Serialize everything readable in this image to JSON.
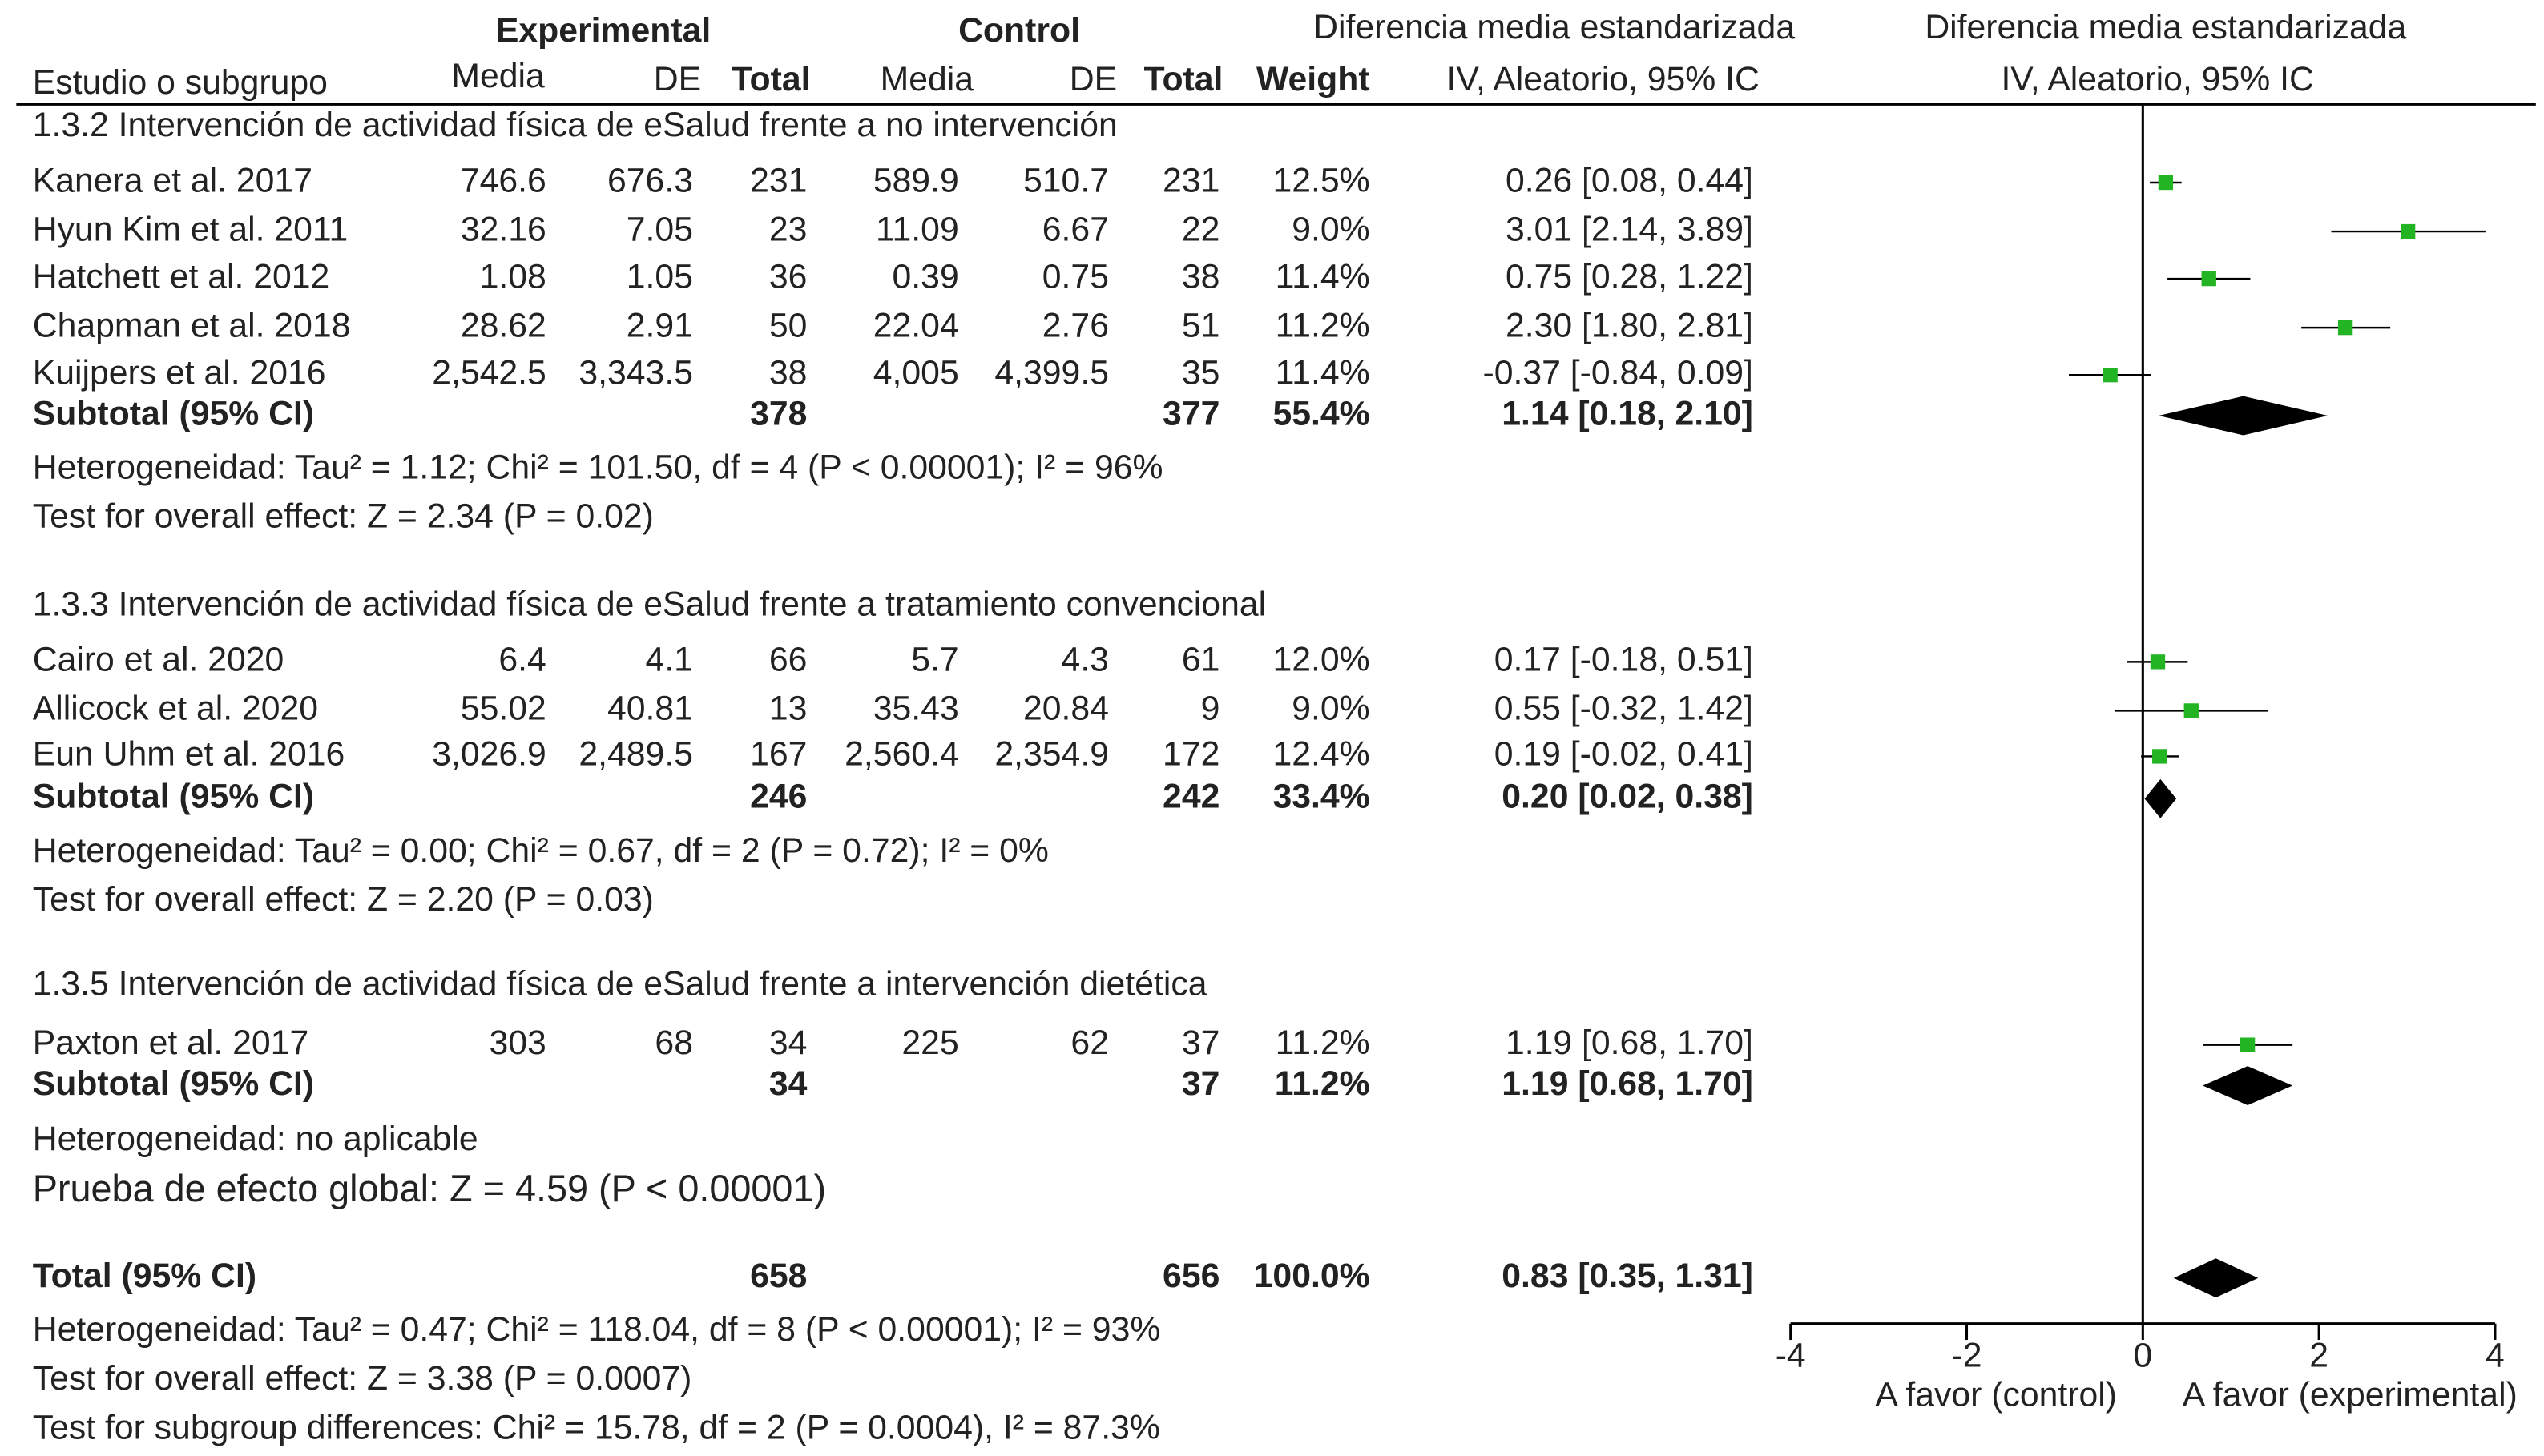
{
  "chart_data": {
    "type": "forest",
    "header": {
      "experimental": "Experimental",
      "control": "Control",
      "study": "Estudio o subgrupo",
      "mean_exp": "Media",
      "sd_exp": "DE",
      "total_exp": "Total",
      "mean_ctrl": "Media",
      "sd_ctrl": "DE",
      "total_ctrl": "Total",
      "weight": "Weight",
      "smd": "Diferencia media estandarizada",
      "method": "IV, Aleatorio, 95% IC",
      "plot_smd": "Diferencia media estandarizada",
      "plot_method": "IV, Aleatorio, 95% IC"
    },
    "subgroups": [
      {
        "title": "1.3.2 Intervención de actividad física de eSalud frente a no intervención",
        "studies": [
          {
            "study": "Kanera et al. 2017",
            "exp": [
              "746.6",
              "676.3",
              "231"
            ],
            "ctrl": [
              "589.9",
              "510.7",
              "231"
            ],
            "weight": "12.5%",
            "ci_label": "0.26 [0.08, 0.44]",
            "est": 0.26,
            "lo": 0.08,
            "hi": 0.44
          },
          {
            "study": "Hyun Kim et al. 2011",
            "exp": [
              "32.16",
              "7.05",
              "23"
            ],
            "ctrl": [
              "11.09",
              "6.67",
              "22"
            ],
            "weight": "9.0%",
            "ci_label": "3.01 [2.14, 3.89]",
            "est": 3.01,
            "lo": 2.14,
            "hi": 3.89
          },
          {
            "study": "Hatchett et al. 2012",
            "exp": [
              "1.08",
              "1.05",
              "36"
            ],
            "ctrl": [
              "0.39",
              "0.75",
              "38"
            ],
            "weight": "11.4%",
            "ci_label": "0.75 [0.28, 1.22]",
            "est": 0.75,
            "lo": 0.28,
            "hi": 1.22
          },
          {
            "study": "Chapman et al. 2018",
            "exp": [
              "28.62",
              "2.91",
              "50"
            ],
            "ctrl": [
              "22.04",
              "2.76",
              "51"
            ],
            "weight": "11.2%",
            "ci_label": "2.30 [1.80, 2.81]",
            "est": 2.3,
            "lo": 1.8,
            "hi": 2.81
          },
          {
            "study": "Kuijpers et al. 2016",
            "exp": [
              "2,542.5",
              "3,343.5",
              "38"
            ],
            "ctrl": [
              "4,005",
              "4,399.5",
              "35"
            ],
            "weight": "11.4%",
            "ci_label": "-0.37 [-0.84, 0.09]",
            "est": -0.37,
            "lo": -0.84,
            "hi": 0.09
          }
        ],
        "subtotal": {
          "label": "Subtotal (95% CI)",
          "exp_total": "378",
          "ctrl_total": "377",
          "weight": "55.4%",
          "ci_label": "1.14 [0.18, 2.10]",
          "est": 1.14,
          "lo": 0.18,
          "hi": 2.1
        },
        "heterogeneity": "Heterogeneidad: Tau² = 1.12; Chi² = 101.50, df = 4 (P < 0.00001); I² = 96%",
        "overall": "Test for overall effect: Z = 2.34 (P = 0.02)"
      },
      {
        "title": "1.3.3 Intervención de actividad física de eSalud frente a tratamiento convencional",
        "studies": [
          {
            "study": "Cairo et al. 2020",
            "exp": [
              "6.4",
              "4.1",
              "66"
            ],
            "ctrl": [
              "5.7",
              "4.3",
              "61"
            ],
            "weight": "12.0%",
            "ci_label": "0.17 [-0.18, 0.51]",
            "est": 0.17,
            "lo": -0.18,
            "hi": 0.51
          },
          {
            "study": "Allicock et al. 2020",
            "exp": [
              "55.02",
              "40.81",
              "13"
            ],
            "ctrl": [
              "35.43",
              "20.84",
              "9"
            ],
            "weight": "9.0%",
            "ci_label": "0.55 [-0.32, 1.42]",
            "est": 0.55,
            "lo": -0.32,
            "hi": 1.42
          },
          {
            "study": "Eun Uhm et al. 2016",
            "exp": [
              "3,026.9",
              "2,489.5",
              "167"
            ],
            "ctrl": [
              "2,560.4",
              "2,354.9",
              "172"
            ],
            "weight": "12.4%",
            "ci_label": "0.19 [-0.02, 0.41]",
            "est": 0.19,
            "lo": -0.02,
            "hi": 0.41
          }
        ],
        "subtotal": {
          "label": "Subtotal (95% CI)",
          "exp_total": "246",
          "ctrl_total": "242",
          "weight": "33.4%",
          "ci_label": "0.20 [0.02, 0.38]",
          "est": 0.2,
          "lo": 0.02,
          "hi": 0.38
        },
        "heterogeneity": "Heterogeneidad:  Tau² = 0.00; Chi² = 0.67, df = 2 (P = 0.72); I² = 0%",
        "overall": "Test for overall effect: Z = 2.20 (P = 0.03)"
      },
      {
        "title": "1.3.5 Intervención de actividad física de eSalud frente a intervención dietética",
        "studies": [
          {
            "study": "Paxton et al. 2017",
            "exp": [
              "303",
              "68",
              "34"
            ],
            "ctrl": [
              "225",
              "62",
              "37"
            ],
            "weight": "11.2%",
            "ci_label": "1.19 [0.68, 1.70]",
            "est": 1.19,
            "lo": 0.68,
            "hi": 1.7
          }
        ],
        "subtotal": {
          "label": "Subtotal (95% CI)",
          "exp_total": "34",
          "ctrl_total": "37",
          "weight": "11.2%",
          "ci_label": "1.19 [0.68, 1.70]",
          "est": 1.19,
          "lo": 0.68,
          "hi": 1.7
        },
        "heterogeneity": "Heterogeneidad: no aplicable",
        "overall": "Prueba de efecto global: Z = 4.59 (P < 0.00001)"
      }
    ],
    "total": {
      "label": "Total (95% CI)",
      "exp_total": "658",
      "ctrl_total": "656",
      "weight": "100.0%",
      "ci_label": "0.83 [0.35, 1.31]",
      "est": 0.83,
      "lo": 0.35,
      "hi": 1.31
    },
    "total_heterogeneity": "Heterogeneidad: Tau² = 0.47; Chi² = 118.04, df = 8 (P < 0.00001); I² = 93%",
    "total_overall": "Test for overall effect: Z = 3.38 (P = 0.0007)",
    "subgroup_differences": "Test for subgroup differences: Chi² = 15.78, df = 2 (P = 0.0004), I² = 87.3%",
    "xlim": [
      -4,
      4
    ],
    "xticks": [
      -4,
      -2,
      0,
      2,
      4
    ],
    "xlabel_left": "A favor (control)",
    "xlabel_right": "A favor (experimental)",
    "study_color": "#22b422",
    "summary_color": "#000000"
  }
}
